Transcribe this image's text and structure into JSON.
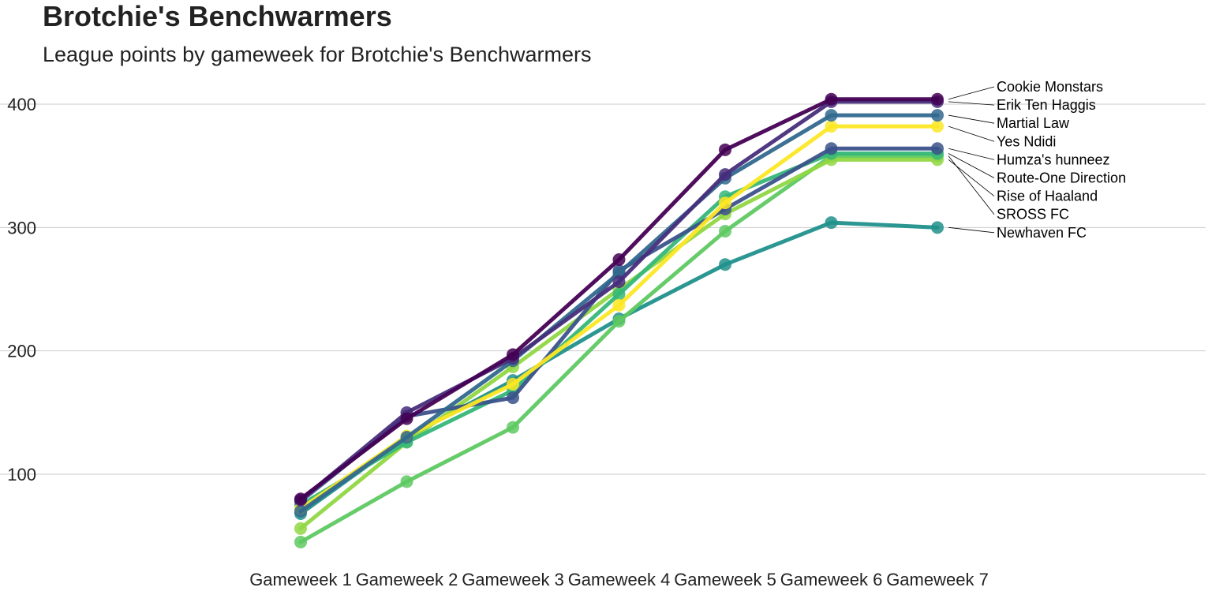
{
  "chart_data": {
    "type": "line",
    "title": "Brotchie's Benchwarmers",
    "subtitle": "League points by gameweek for Brotchie's Benchwarmers",
    "xlabel": "",
    "ylabel": "",
    "ylim": [
      32,
      418
    ],
    "yticks": [
      100,
      200,
      300,
      400
    ],
    "grid": true,
    "legend": "direct labels right",
    "categories": [
      "Gameweek 1",
      "Gameweek 2",
      "Gameweek 3",
      "Gameweek 4",
      "Gameweek 5",
      "Gameweek 6",
      "Gameweek 7"
    ],
    "series": [
      {
        "name": "Cookie Monstars",
        "color": "#440154",
        "values": [
          80,
          145,
          197,
          274,
          363,
          404,
          404
        ]
      },
      {
        "name": "Erik Ten Haggis",
        "color": "#472d7b",
        "values": [
          79,
          150,
          194,
          256,
          343,
          402,
          402
        ]
      },
      {
        "name": "Martial Law",
        "color": "#31688e",
        "values": [
          70,
          130,
          192,
          263,
          340,
          391,
          391
        ]
      },
      {
        "name": "Yes Ndidi",
        "color": "#fde725",
        "values": [
          72,
          131,
          173,
          237,
          320,
          382,
          382
        ]
      },
      {
        "name": "Humza's hunneez",
        "color": "#3b528b",
        "values": [
          78,
          147,
          162,
          265,
          315,
          364,
          364
        ]
      },
      {
        "name": "Route-One Direction",
        "color": "#35b779",
        "values": [
          75,
          126,
          168,
          246,
          325,
          360,
          360
        ]
      },
      {
        "name": "Rise of Haaland",
        "color": "#90d743",
        "values": [
          56,
          126,
          187,
          250,
          311,
          355,
          355
        ]
      },
      {
        "name": "SROSS FC",
        "color": "#5ec962",
        "values": [
          45,
          94,
          138,
          224,
          297,
          358,
          358
        ]
      },
      {
        "name": "Newhaven FC",
        "color": "#21918c",
        "values": [
          68,
          130,
          176,
          226,
          270,
          304,
          300
        ]
      }
    ]
  }
}
